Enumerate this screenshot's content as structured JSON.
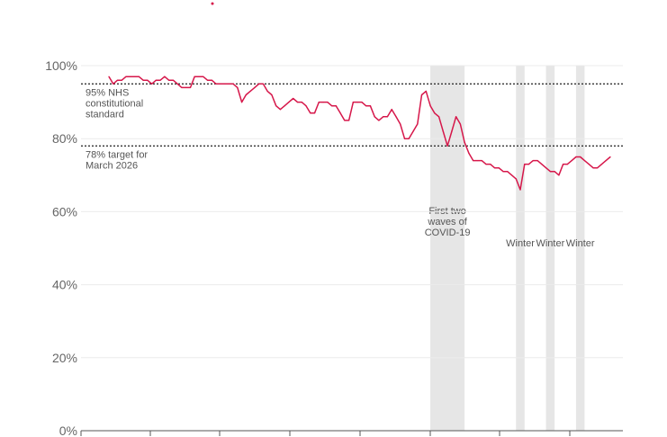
{
  "chart_data": {
    "type": "line",
    "y_unit": "%",
    "ylim": [
      0,
      100
    ],
    "y_ticks": [
      "0%",
      "20%",
      "40%",
      "60%",
      "80%",
      "100%"
    ],
    "y_tick_values": [
      0,
      20,
      40,
      60,
      80,
      100
    ],
    "grid": true,
    "series": [
      {
        "color": "#d6174a",
        "values": [
          97,
          95,
          96,
          96,
          97,
          97,
          97,
          97,
          96,
          96,
          95,
          96,
          96,
          97,
          96,
          96,
          95,
          94,
          94,
          94,
          97,
          97,
          97,
          96,
          96,
          95,
          95,
          95,
          95,
          95,
          94,
          90,
          92,
          93,
          94,
          95,
          95,
          93,
          92,
          89,
          88,
          89,
          90,
          91,
          90,
          90,
          89,
          87,
          87,
          90,
          90,
          90,
          89,
          89,
          87,
          85,
          85,
          90,
          90,
          90,
          89,
          89,
          86,
          85,
          86,
          86,
          88,
          86,
          84,
          80,
          80,
          82,
          84,
          92,
          93,
          89,
          87,
          86,
          82,
          78,
          82,
          86,
          84,
          79,
          76,
          74,
          74,
          74,
          73,
          73,
          72,
          72,
          71,
          71,
          70,
          69,
          66,
          73,
          73,
          74,
          74,
          73,
          72,
          71,
          71,
          70,
          73,
          73,
          74,
          75,
          75,
          74,
          73,
          72,
          72,
          73,
          74,
          75
        ]
      }
    ],
    "reference_lines": [
      {
        "value": 95,
        "label_lines": [
          "95% NHS",
          "constitutional",
          "standard"
        ]
      },
      {
        "value": 78,
        "label_lines": [
          "78% target for",
          "March 2026"
        ]
      }
    ],
    "shaded_periods": [
      {
        "from": 75,
        "to": 83,
        "label_lines": [
          "First two",
          "waves of",
          "COVID-19"
        ]
      },
      {
        "from": 95,
        "to": 97,
        "label_lines": [
          "Winter"
        ]
      },
      {
        "from": 102,
        "to": 104,
        "label_lines": [
          "Winter"
        ]
      },
      {
        "from": 109,
        "to": 111,
        "label_lines": [
          "Winter"
        ]
      }
    ]
  }
}
